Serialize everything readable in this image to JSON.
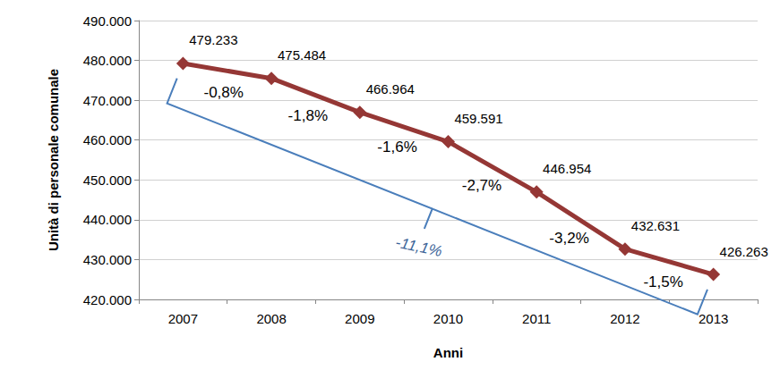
{
  "chart_data": {
    "type": "line",
    "x_label": "Anni",
    "y_label": "Unità di personale comunale",
    "categories": [
      "2007",
      "2008",
      "2009",
      "2010",
      "2011",
      "2012",
      "2013"
    ],
    "values": [
      479233,
      475484,
      466964,
      459591,
      446954,
      432631,
      426263
    ],
    "value_labels": [
      "479.233",
      "475.484",
      "466.964",
      "459.591",
      "446.954",
      "432.631",
      "426.263"
    ],
    "segment_labels": [
      "-0,8%",
      "-1,8%",
      "-1,6%",
      "-2,7%",
      "-3,2%",
      "-1,5%"
    ],
    "overall_label": "-11,1%",
    "color": "#953735",
    "marker": "diamond",
    "data_labels": true,
    "grid": true,
    "ylim": [
      420000,
      490000
    ],
    "yticks": [
      {
        "value": 420000,
        "label": "420.000"
      },
      {
        "value": 430000,
        "label": "430.000"
      },
      {
        "value": 440000,
        "label": "440.000"
      },
      {
        "value": 450000,
        "label": "450.000"
      },
      {
        "value": 460000,
        "label": "460.000"
      },
      {
        "value": 470000,
        "label": "470.000"
      },
      {
        "value": 480000,
        "label": "480.000"
      },
      {
        "value": 490000,
        "label": "490.000"
      }
    ]
  }
}
